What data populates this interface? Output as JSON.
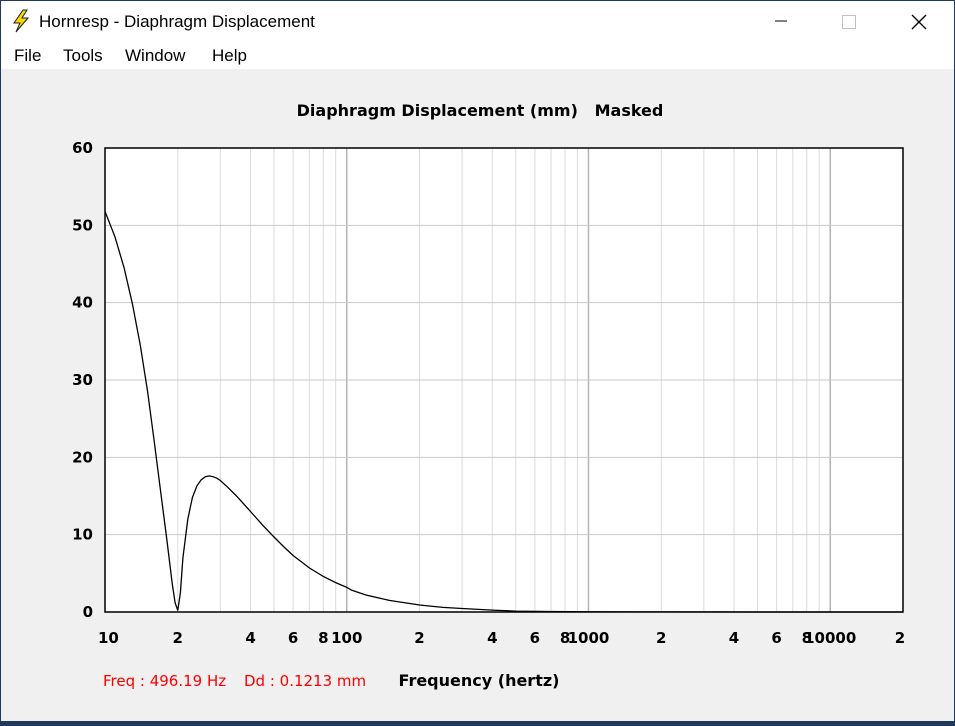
{
  "window": {
    "title": "Hornresp - Diaphragm Displacement"
  },
  "menu": {
    "items": [
      "File",
      "Tools",
      "Window",
      "Help"
    ]
  },
  "status": {
    "freq_readout": "Freq : 496.19 Hz",
    "dd_readout": "Dd : 0.1213 mm"
  },
  "colors": {
    "readout": "#ff0000",
    "curve": "#000000",
    "grid": "#c8c8c8",
    "plot_bg": "#ffffff"
  },
  "chart_data": {
    "type": "line",
    "title": "Diaphragm Displacement (mm)   Masked",
    "xlabel": "Frequency (hertz)",
    "ylabel": "",
    "x_scale": "log",
    "xlim": [
      10,
      20000
    ],
    "ylim": [
      0,
      60
    ],
    "grid": true,
    "y_ticks": [
      0,
      10,
      20,
      30,
      40,
      50,
      60
    ],
    "x_tick_labels": [
      {
        "v": 10,
        "t": "10"
      },
      {
        "v": 20,
        "t": "2"
      },
      {
        "v": 40,
        "t": "4"
      },
      {
        "v": 60,
        "t": "6"
      },
      {
        "v": 80,
        "t": "8"
      },
      {
        "v": 100,
        "t": "100"
      },
      {
        "v": 200,
        "t": "2"
      },
      {
        "v": 400,
        "t": "4"
      },
      {
        "v": 600,
        "t": "6"
      },
      {
        "v": 800,
        "t": "8"
      },
      {
        "v": 1000,
        "t": "1000"
      },
      {
        "v": 2000,
        "t": "2"
      },
      {
        "v": 4000,
        "t": "4"
      },
      {
        "v": 6000,
        "t": "6"
      },
      {
        "v": 8000,
        "t": "8"
      },
      {
        "v": 10000,
        "t": "10000"
      },
      {
        "v": 20000,
        "t": "2"
      }
    ],
    "series": [
      {
        "x": [
          10,
          11,
          12,
          13,
          14,
          15,
          16,
          17,
          18,
          19,
          19.5,
          20,
          20.5,
          21,
          22,
          23,
          24,
          25,
          26,
          27,
          28,
          29,
          30,
          32,
          35,
          40,
          45,
          50,
          55,
          60,
          70,
          80,
          90,
          100,
          105,
          110,
          120,
          150,
          200,
          250,
          300,
          400,
          500,
          700,
          1000,
          2000,
          5000,
          10000,
          20000
        ],
        "y": [
          51.8,
          48.5,
          44.5,
          39.8,
          34.5,
          28.5,
          22.0,
          15.5,
          9.5,
          3.5,
          1.2,
          0.2,
          2.5,
          7.0,
          12.0,
          14.8,
          16.3,
          17.1,
          17.5,
          17.6,
          17.5,
          17.3,
          17.0,
          16.2,
          15.0,
          13.0,
          11.2,
          9.7,
          8.4,
          7.3,
          5.7,
          4.6,
          3.8,
          3.2,
          2.8,
          2.6,
          2.2,
          1.5,
          0.9,
          0.6,
          0.45,
          0.25,
          0.12,
          0.06,
          0.03,
          0.01,
          0.0,
          0.0,
          0.0
        ]
      }
    ]
  }
}
